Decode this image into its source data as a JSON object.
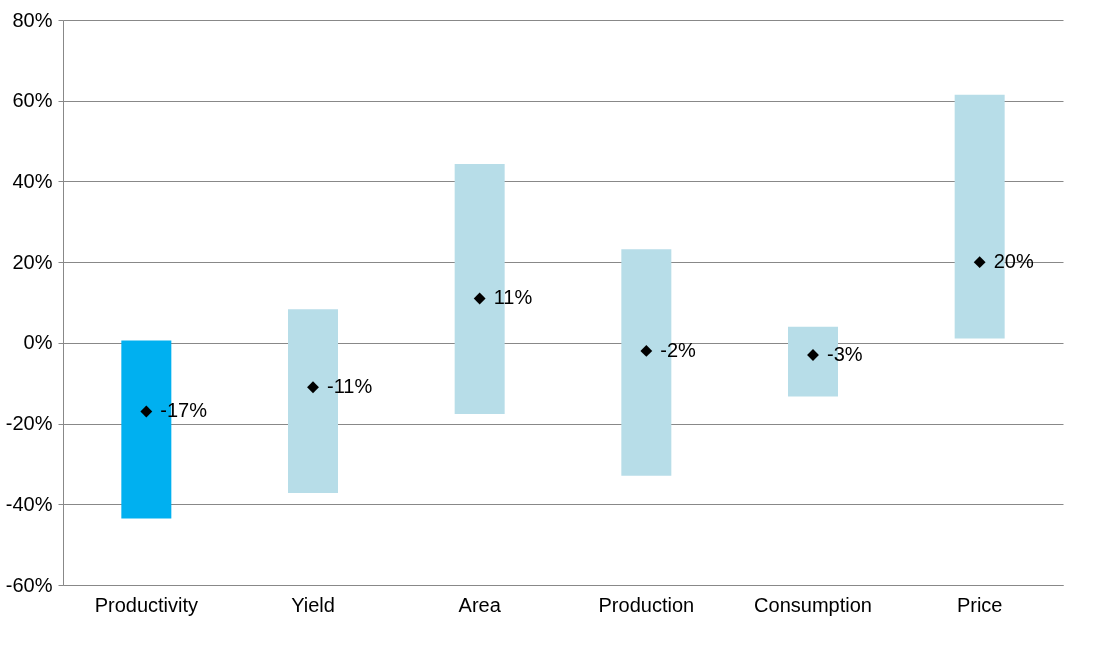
{
  "chart_data": {
    "type": "bar",
    "categories": [
      "Productivity",
      "Yield",
      "Area",
      "Production",
      "Consumption",
      "Price"
    ],
    "ylim": [
      -60,
      80
    ],
    "yticks": [
      {
        "value": -60,
        "label": "-60%"
      },
      {
        "value": -40,
        "label": "-40%"
      },
      {
        "value": -20,
        "label": "-20%"
      },
      {
        "value": 0,
        "label": "0%"
      },
      {
        "value": 20,
        "label": "20%"
      },
      {
        "value": 40,
        "label": "40%"
      },
      {
        "value": 60,
        "label": "60%"
      },
      {
        "value": 80,
        "label": "80%"
      }
    ],
    "grid": "y",
    "series": [
      {
        "base": [
          -43.5,
          -37.2,
          -17.6,
          -32.9,
          -13.3,
          1.1
        ],
        "colors": [
          "#00b0f0",
          "#b7dde8",
          "#b7dde8",
          "#b7dde8",
          "#b7dde8",
          "#b7dde8"
        ],
        "values": [
          44.1,
          45.5,
          61.9,
          56.1,
          17.3,
          60.4
        ]
      },
      {
        "type": "scatter",
        "color": "#000000",
        "marker": "diamond",
        "x": [
          "Productivity",
          "Yield",
          "Area",
          "Production",
          "Consumption",
          "Price"
        ],
        "values": [
          -17,
          -11,
          11,
          -2,
          -3,
          20
        ],
        "value_labels": [
          "-17%",
          "-11%",
          "11%",
          "-2%",
          "-3%",
          "20%"
        ]
      }
    ]
  }
}
